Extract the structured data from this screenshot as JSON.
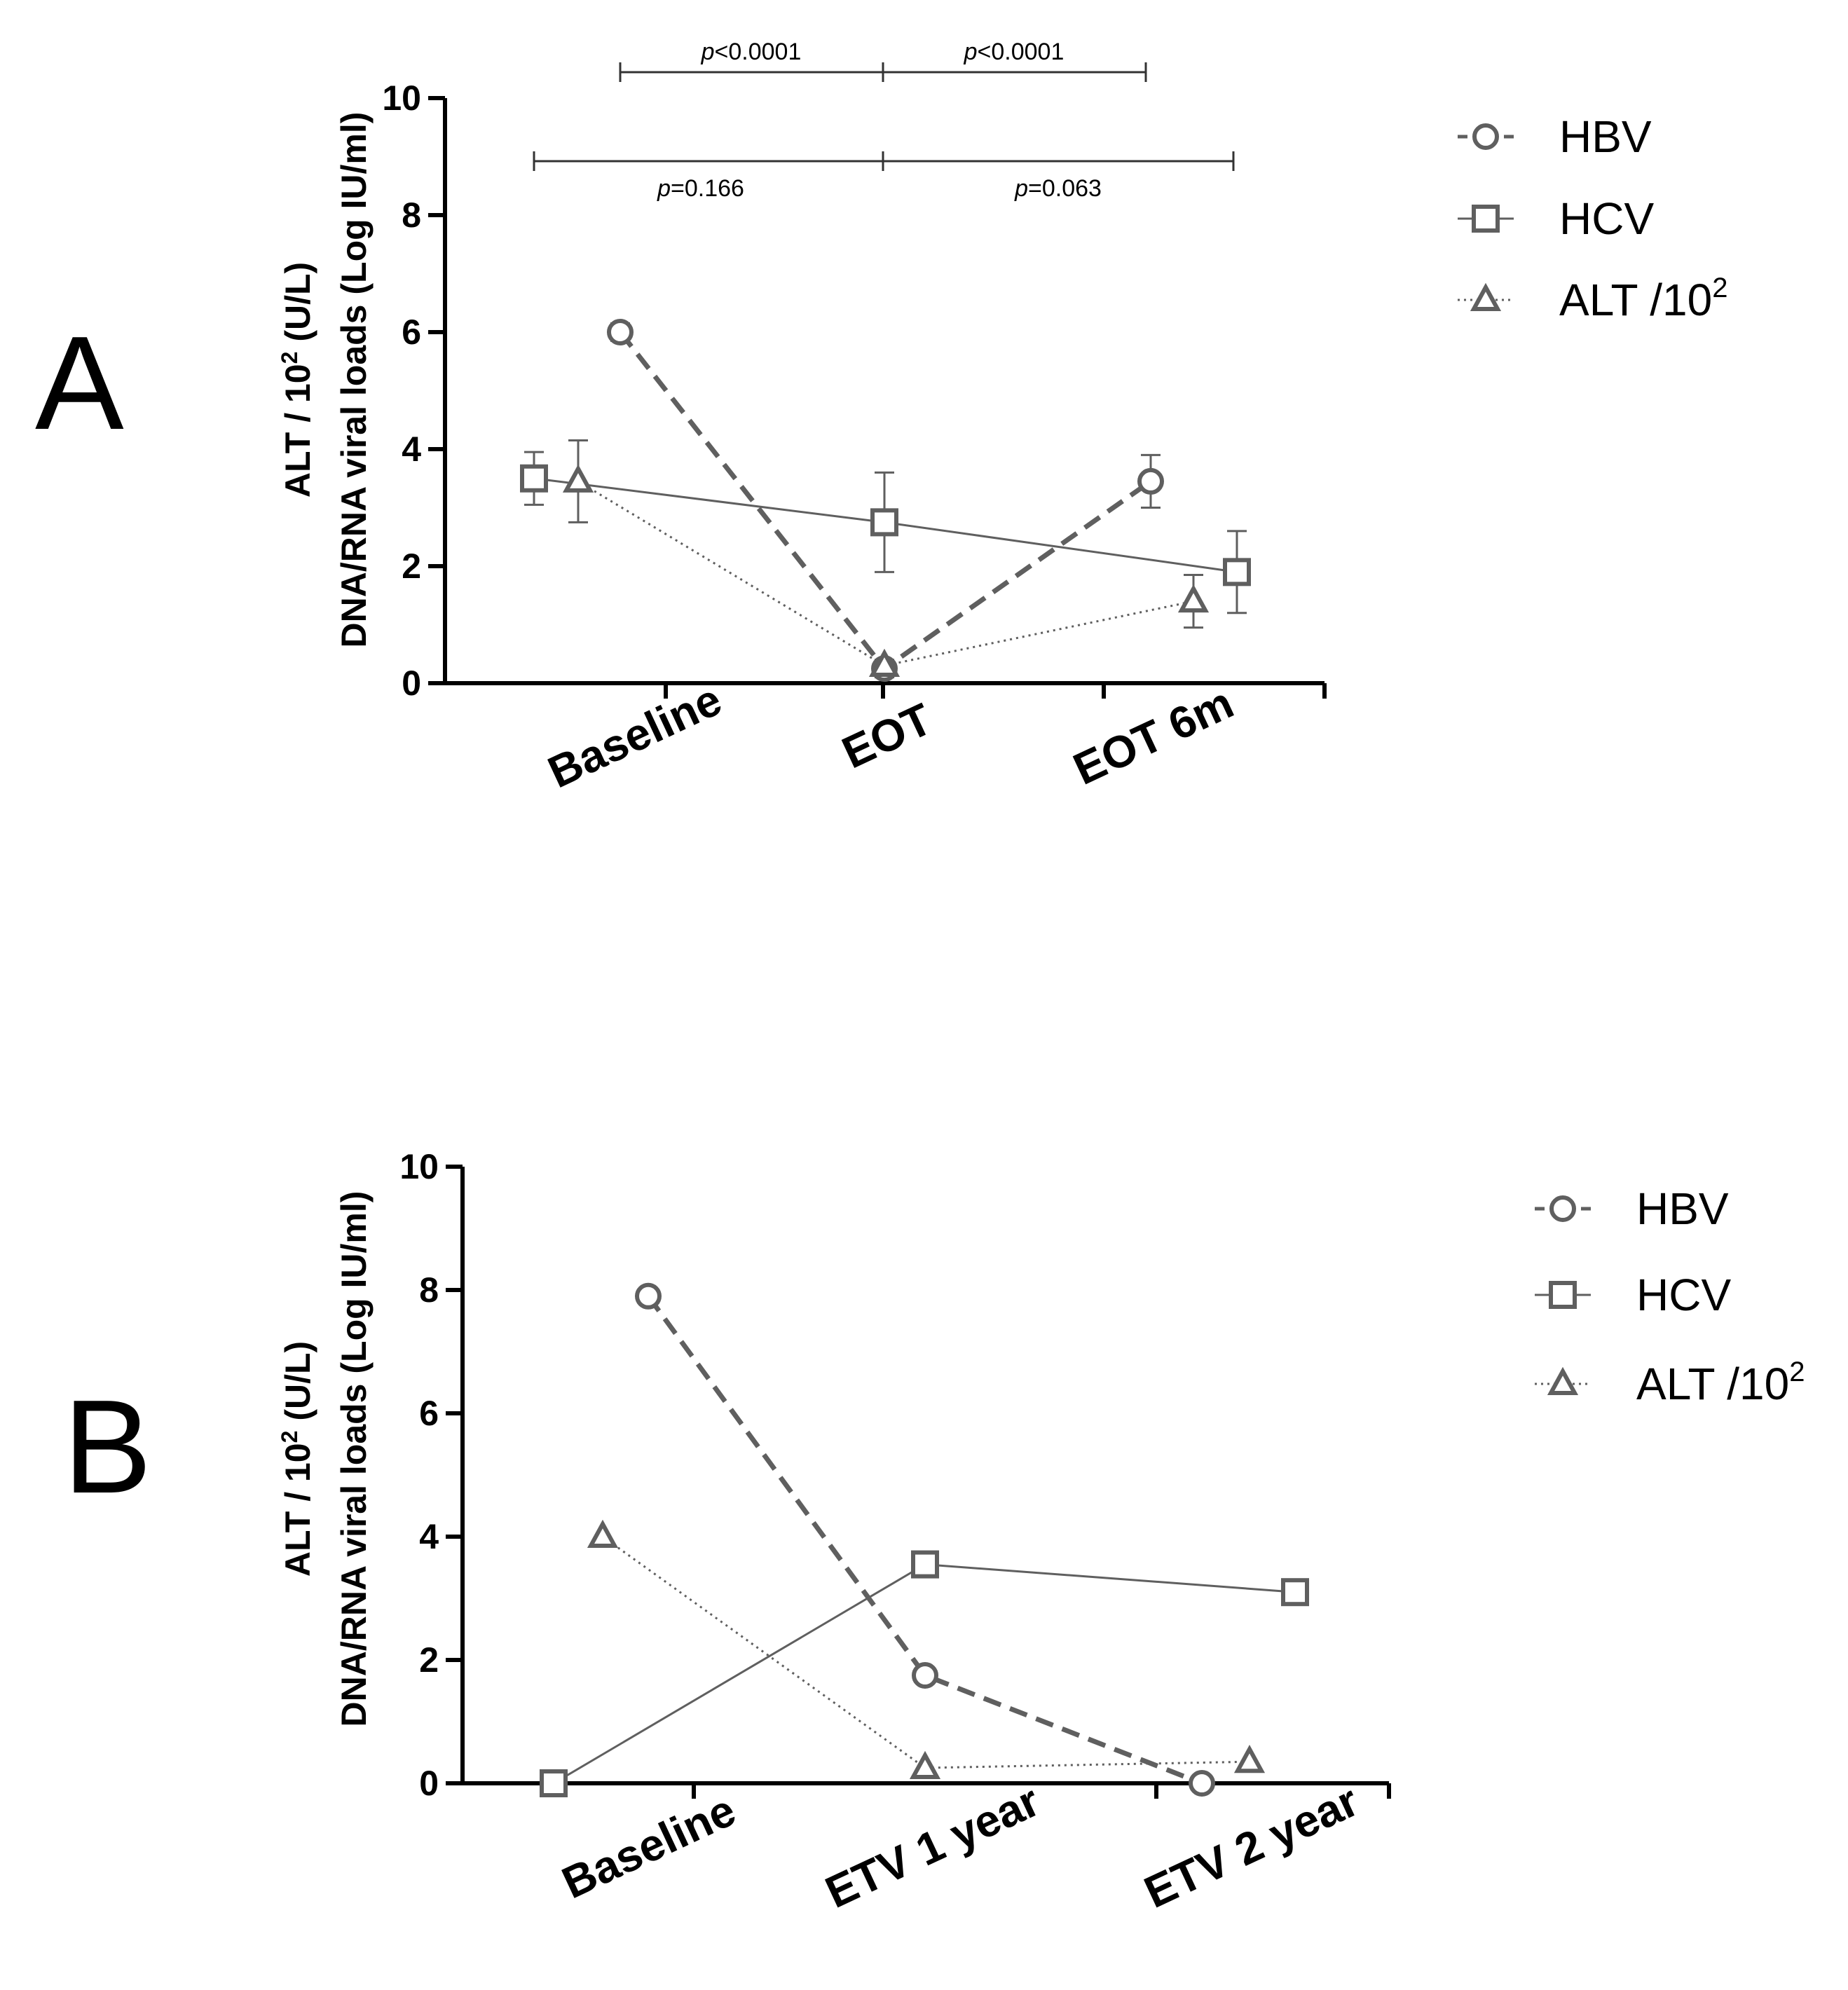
{
  "chart_data": [
    {
      "panel": "A",
      "type": "line",
      "ylabel_line1": "ALT / 10",
      "ylabel_sup": "2",
      "ylabel_line1_suffix": " (U/L)",
      "ylabel_line2": "DNA/RNA viral loads (Log IU/ml)",
      "ylim": [
        0,
        10
      ],
      "yticks": [
        "0",
        "2",
        "4",
        "6",
        "8",
        "10"
      ],
      "categories": [
        "Baseline",
        "EOT",
        "EOT 6m"
      ],
      "series": [
        {
          "name": "HBV",
          "marker": "circle",
          "line": "dashed",
          "values": [
            6.0,
            0.25,
            3.45
          ],
          "errors": [
            0.15,
            0.15,
            0.45
          ]
        },
        {
          "name": "HCV",
          "marker": "square",
          "line": "solid",
          "values": [
            3.5,
            2.75,
            1.9
          ],
          "errors": [
            0.45,
            0.85,
            0.7
          ]
        },
        {
          "name": "ALT /10",
          "sup": "2",
          "marker": "triangle",
          "line": "dotted",
          "values": [
            3.45,
            0.3,
            1.4
          ],
          "errors": [
            0.7,
            0.0,
            0.45
          ]
        }
      ],
      "significance": [
        {
          "label_prefix": "p",
          "label": "<0.0001",
          "from": "Baseline",
          "to": "EOT",
          "row": "upper"
        },
        {
          "label_prefix": "p",
          "label": "<0.0001",
          "from": "EOT",
          "to": "EOT 6m",
          "row": "upper"
        },
        {
          "label_prefix": "p",
          "label": "=0.166",
          "from": "Baseline",
          "to": "EOT",
          "row": "lower"
        },
        {
          "label_prefix": "p",
          "label": "=0.063",
          "from": "EOT",
          "to": "EOT 6m",
          "row": "lower"
        }
      ]
    },
    {
      "panel": "B",
      "type": "line",
      "ylabel_line1": "ALT / 10",
      "ylabel_sup": "2",
      "ylabel_line1_suffix": " (U/L)",
      "ylabel_line2": "DNA/RNA viral loads (Log IU/ml)",
      "ylim": [
        0,
        10
      ],
      "yticks": [
        "0",
        "2",
        "4",
        "6",
        "8",
        "10"
      ],
      "categories": [
        "Baseline",
        "ETV 1 year",
        "ETV 2 year"
      ],
      "series": [
        {
          "name": "HBV",
          "marker": "circle",
          "line": "dashed",
          "values": [
            7.9,
            1.75,
            0.0
          ]
        },
        {
          "name": "HCV",
          "marker": "square",
          "line": "solid",
          "values": [
            0.0,
            3.55,
            3.1
          ]
        },
        {
          "name": "ALT /10",
          "sup": "2",
          "marker": "triangle",
          "line": "dotted",
          "values": [
            4.0,
            0.25,
            0.35
          ]
        }
      ]
    }
  ]
}
